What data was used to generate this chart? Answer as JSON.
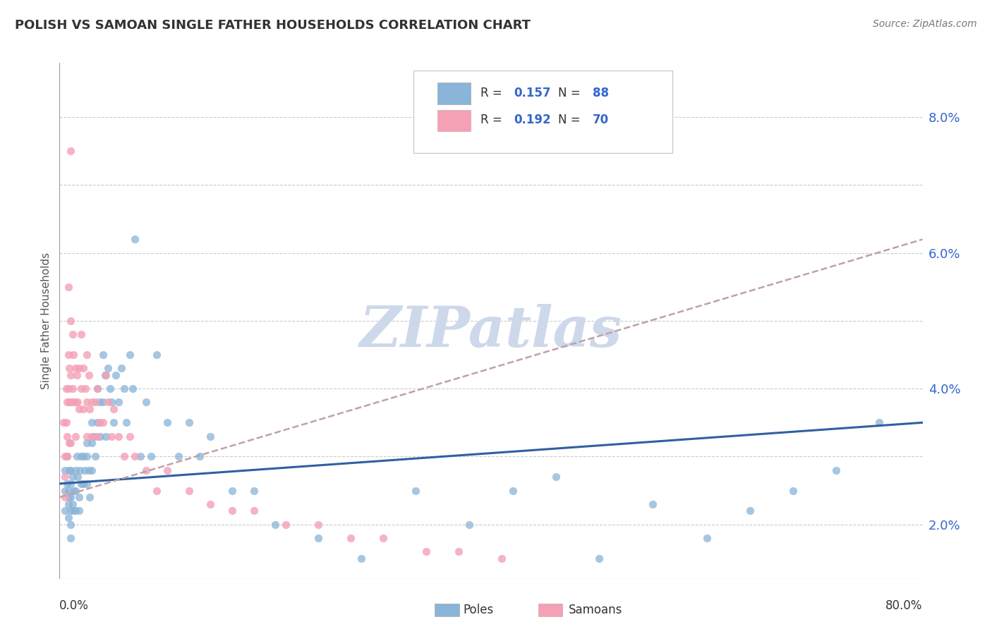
{
  "title": "POLISH VS SAMOAN SINGLE FATHER HOUSEHOLDS CORRELATION CHART",
  "source": "Source: ZipAtlas.com",
  "ylabel": "Single Father Households",
  "yticks": [
    0.02,
    0.04,
    0.06,
    0.08
  ],
  "ytick_labels": [
    "2.0%",
    "4.0%",
    "6.0%",
    "8.0%"
  ],
  "xlim": [
    0.0,
    0.8
  ],
  "ylim": [
    0.012,
    0.088
  ],
  "poles_R": 0.157,
  "poles_N": 88,
  "samoans_R": 0.192,
  "samoans_N": 70,
  "poles_color": "#8ab4d8",
  "samoans_color": "#f4a0b5",
  "poles_line_color": "#3060a0",
  "samoans_line_color": "#d06080",
  "samoans_line_dash": true,
  "watermark": "ZIPatlas",
  "watermark_color": "#cdd8ea",
  "background_color": "#ffffff",
  "poles_x": [
    0.005,
    0.005,
    0.005,
    0.007,
    0.007,
    0.008,
    0.008,
    0.008,
    0.009,
    0.009,
    0.01,
    0.01,
    0.01,
    0.01,
    0.01,
    0.01,
    0.012,
    0.012,
    0.013,
    0.013,
    0.015,
    0.015,
    0.015,
    0.016,
    0.017,
    0.018,
    0.018,
    0.019,
    0.02,
    0.02,
    0.022,
    0.022,
    0.023,
    0.025,
    0.025,
    0.025,
    0.027,
    0.028,
    0.03,
    0.03,
    0.03,
    0.032,
    0.033,
    0.035,
    0.035,
    0.037,
    0.038,
    0.04,
    0.04,
    0.042,
    0.043,
    0.045,
    0.047,
    0.048,
    0.05,
    0.052,
    0.055,
    0.057,
    0.06,
    0.062,
    0.065,
    0.068,
    0.07,
    0.075,
    0.08,
    0.085,
    0.09,
    0.1,
    0.11,
    0.12,
    0.13,
    0.14,
    0.16,
    0.18,
    0.2,
    0.24,
    0.28,
    0.33,
    0.38,
    0.42,
    0.46,
    0.5,
    0.55,
    0.6,
    0.64,
    0.68,
    0.72,
    0.76
  ],
  "poles_y": [
    0.028,
    0.025,
    0.022,
    0.03,
    0.026,
    0.025,
    0.023,
    0.021,
    0.028,
    0.024,
    0.028,
    0.026,
    0.024,
    0.022,
    0.02,
    0.018,
    0.027,
    0.023,
    0.025,
    0.022,
    0.028,
    0.025,
    0.022,
    0.03,
    0.027,
    0.024,
    0.022,
    0.028,
    0.03,
    0.026,
    0.03,
    0.026,
    0.028,
    0.032,
    0.03,
    0.026,
    0.028,
    0.024,
    0.035,
    0.032,
    0.028,
    0.033,
    0.03,
    0.04,
    0.035,
    0.038,
    0.033,
    0.045,
    0.038,
    0.042,
    0.033,
    0.043,
    0.04,
    0.038,
    0.035,
    0.042,
    0.038,
    0.043,
    0.04,
    0.035,
    0.045,
    0.04,
    0.062,
    0.03,
    0.038,
    0.03,
    0.045,
    0.035,
    0.03,
    0.035,
    0.03,
    0.033,
    0.025,
    0.025,
    0.02,
    0.018,
    0.015,
    0.025,
    0.02,
    0.025,
    0.027,
    0.015,
    0.023,
    0.018,
    0.022,
    0.025,
    0.028,
    0.035
  ],
  "samoans_x": [
    0.004,
    0.005,
    0.005,
    0.005,
    0.006,
    0.006,
    0.007,
    0.007,
    0.007,
    0.008,
    0.008,
    0.008,
    0.009,
    0.009,
    0.009,
    0.01,
    0.01,
    0.01,
    0.01,
    0.01,
    0.012,
    0.012,
    0.013,
    0.013,
    0.015,
    0.015,
    0.015,
    0.016,
    0.017,
    0.018,
    0.018,
    0.02,
    0.02,
    0.022,
    0.022,
    0.024,
    0.025,
    0.025,
    0.025,
    0.027,
    0.028,
    0.03,
    0.03,
    0.033,
    0.035,
    0.035,
    0.037,
    0.04,
    0.043,
    0.045,
    0.048,
    0.05,
    0.055,
    0.06,
    0.065,
    0.07,
    0.08,
    0.09,
    0.1,
    0.12,
    0.14,
    0.16,
    0.18,
    0.21,
    0.24,
    0.27,
    0.3,
    0.34,
    0.37,
    0.41
  ],
  "samoans_y": [
    0.035,
    0.03,
    0.027,
    0.024,
    0.04,
    0.035,
    0.038,
    0.033,
    0.03,
    0.055,
    0.045,
    0.04,
    0.043,
    0.038,
    0.032,
    0.075,
    0.05,
    0.042,
    0.038,
    0.032,
    0.048,
    0.04,
    0.045,
    0.038,
    0.043,
    0.038,
    0.033,
    0.042,
    0.038,
    0.043,
    0.037,
    0.048,
    0.04,
    0.043,
    0.037,
    0.04,
    0.045,
    0.038,
    0.033,
    0.042,
    0.037,
    0.038,
    0.033,
    0.038,
    0.04,
    0.033,
    0.035,
    0.035,
    0.042,
    0.038,
    0.033,
    0.037,
    0.033,
    0.03,
    0.033,
    0.03,
    0.028,
    0.025,
    0.028,
    0.025,
    0.023,
    0.022,
    0.022,
    0.02,
    0.02,
    0.018,
    0.018,
    0.016,
    0.016,
    0.015
  ]
}
